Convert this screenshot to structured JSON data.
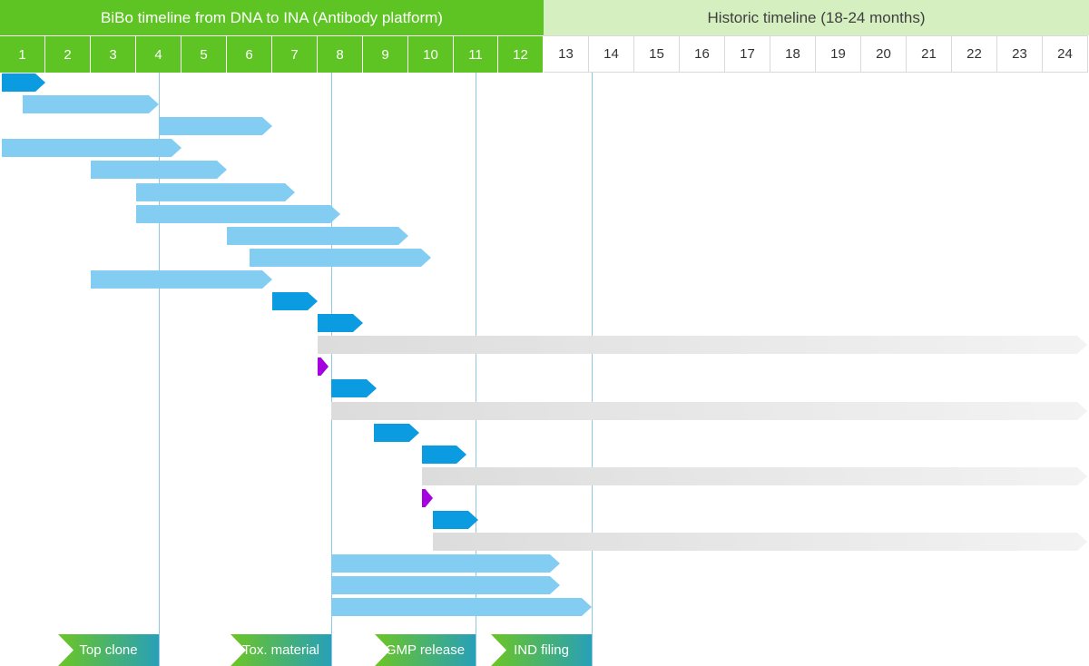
{
  "header": {
    "left": "BiBo timeline from DNA to INA (Antibody platform)",
    "right": "Historic timeline (18-24 months)"
  },
  "months": [
    "1",
    "2",
    "3",
    "4",
    "5",
    "6",
    "7",
    "8",
    "9",
    "10",
    "11",
    "12",
    "13",
    "14",
    "15",
    "16",
    "17",
    "18",
    "19",
    "20",
    "21",
    "22",
    "23",
    "24"
  ],
  "bibo_months": 12,
  "colors": {
    "bibo_green": "#5ec423",
    "historic_green": "#d5efc0",
    "task_light": "#84cdf2",
    "task_dark": "#0b9be0",
    "ongoing_gray": "#dcdcdc",
    "event_purple": "#a400e0",
    "milestone_gradient_end": "#27a0b8"
  },
  "chart_data": {
    "type": "gantt",
    "x_unit": "month",
    "xlim": [
      0.5,
      24.5
    ],
    "tasks": [
      {
        "start": 0.55,
        "end": 1.5,
        "style": "dark"
      },
      {
        "start": 1.0,
        "end": 4.0,
        "style": "light"
      },
      {
        "start": 4.0,
        "end": 6.5,
        "style": "light"
      },
      {
        "start": 0.55,
        "end": 4.5,
        "style": "light"
      },
      {
        "start": 2.5,
        "end": 5.5,
        "style": "light"
      },
      {
        "start": 3.5,
        "end": 7.0,
        "style": "light"
      },
      {
        "start": 3.5,
        "end": 8.0,
        "style": "light"
      },
      {
        "start": 5.5,
        "end": 9.5,
        "style": "light"
      },
      {
        "start": 6.0,
        "end": 10.0,
        "style": "light"
      },
      {
        "start": 2.5,
        "end": 6.5,
        "style": "light"
      },
      {
        "start": 6.5,
        "end": 7.5,
        "style": "dark"
      },
      {
        "start": 7.5,
        "end": 8.5,
        "style": "dark"
      },
      {
        "start": 7.5,
        "end": 24.5,
        "style": "gray"
      },
      {
        "start": 7.5,
        "end": 7.75,
        "style": "purple"
      },
      {
        "start": 7.8,
        "end": 8.8,
        "style": "dark"
      },
      {
        "start": 7.8,
        "end": 24.5,
        "style": "gray"
      },
      {
        "start": 8.75,
        "end": 9.75,
        "style": "dark"
      },
      {
        "start": 9.8,
        "end": 10.8,
        "style": "dark"
      },
      {
        "start": 9.8,
        "end": 24.5,
        "style": "gray"
      },
      {
        "start": 9.8,
        "end": 10.05,
        "style": "purple"
      },
      {
        "start": 10.05,
        "end": 11.05,
        "style": "dark"
      },
      {
        "start": 10.05,
        "end": 24.5,
        "style": "gray"
      },
      {
        "start": 7.8,
        "end": 12.85,
        "style": "light"
      },
      {
        "start": 7.8,
        "end": 12.85,
        "style": "light"
      },
      {
        "start": 7.8,
        "end": 13.55,
        "style": "light"
      }
    ],
    "milestones": [
      {
        "label": "Top clone",
        "month": 4.0
      },
      {
        "label": "Tox. material",
        "month": 7.8
      },
      {
        "label": "GMP release",
        "month": 11.0
      },
      {
        "label": "IND filing",
        "month": 13.55
      }
    ]
  }
}
